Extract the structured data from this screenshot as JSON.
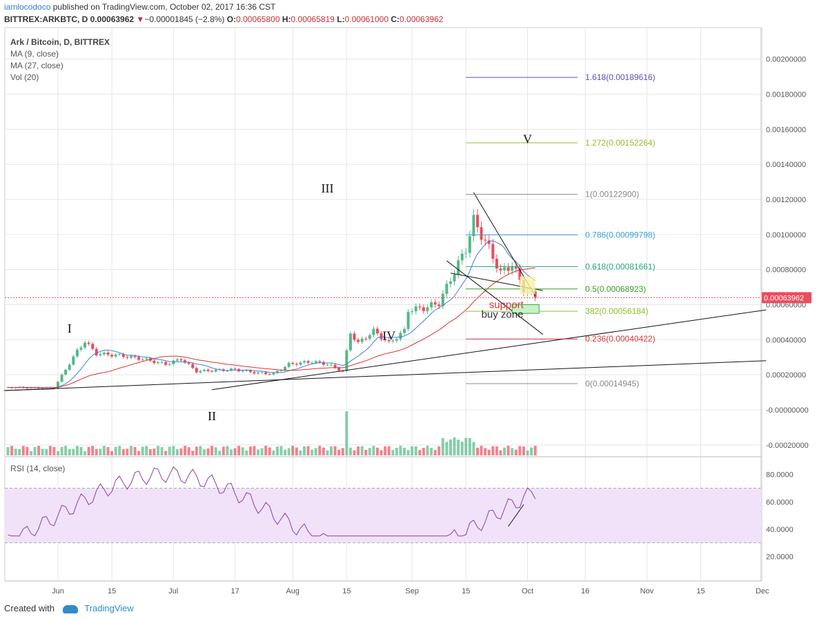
{
  "header": {
    "user": "iamlocodoco",
    "published": "published on TradingView.com, October 02, 2017 16:36 CST",
    "symbol": "BITTREX:ARKBTC, D",
    "last": "0.00063962",
    "change": "−0.00001845 (−2.8%)",
    "o_label": "O:",
    "o_value": "0.00065800",
    "h_label": "H:",
    "h_value": "0.00065819",
    "l_label": "L:",
    "l_value": "0.00061000",
    "c_label": "C:",
    "c_value": "0.00063962"
  },
  "legend": {
    "title": "Ark / Bitcoin, D, BITTREX",
    "ma9": "MA (9, close)",
    "ma27": "MA (27, close)",
    "vol": "Vol (20)",
    "rsi": "RSI (14, close)"
  },
  "footer": {
    "created": "Created with",
    "brand": "TradingView"
  },
  "colors": {
    "up": "#53b987",
    "down": "#eb4d5c",
    "ma9": "#3f7fd4",
    "ma27": "#e03030",
    "rsi": "#8b3ea0",
    "rsi_band": "#f1e2fa",
    "grid": "#e6e6e6"
  },
  "chart_data": {
    "type": "candlestick",
    "title": "Ark / Bitcoin, D, BITTREX",
    "y_ticks": [
      "0.00200000",
      "0.00180000",
      "0.00160000",
      "0.00140000",
      "0.00120000",
      "0.00100000",
      "0.00080000",
      "0.00060000",
      "0.00040000",
      "0.00020000",
      "-0.00000000",
      "-0.00020000"
    ],
    "y_range": [
      -0.00026,
      0.00218
    ],
    "rsi_ticks": [
      "80.0000",
      "60.0000",
      "40.0000",
      "20.0000"
    ],
    "rsi_range": [
      2,
      92
    ],
    "rsi_band": [
      30,
      70
    ],
    "x_ticks": [
      "Jun",
      "15",
      "Jul",
      "17",
      "Aug",
      "15",
      "Sep",
      "15",
      "Oct",
      "16",
      "Nov",
      "15",
      "Dec"
    ],
    "x_tick_days": [
      0,
      14,
      30,
      46,
      61,
      75,
      92,
      106,
      122,
      137,
      153,
      167,
      183
    ],
    "current_price": "0.00063962",
    "current_value": 0.00063962,
    "fib_levels": [
      {
        "label": "1.618(0.00189616)",
        "value": 0.00189616,
        "color": "#5a4ec2"
      },
      {
        "label": "1.272(0.00152264)",
        "value": 0.00152264,
        "color": "#8fbd2e"
      },
      {
        "label": "1(0.00122900)",
        "value": 0.001229,
        "color": "#888888"
      },
      {
        "label": "0.786(0.00099798)",
        "value": 0.00099798,
        "color": "#3aa0d6"
      },
      {
        "label": "0.618(0.00081661)",
        "value": 0.00081661,
        "color": "#27a67c"
      },
      {
        "label": "0.5(0.00068923)",
        "value": 0.00068923,
        "color": "#3d9a2a"
      },
      {
        "label": "382(0.00056184)",
        "value": 0.00056184,
        "color": "#8fbd2e"
      },
      {
        "label": "0.236(0.00040422)",
        "value": 0.00040422,
        "color": "#d43a3a"
      },
      {
        "label": "0(0.00014945)",
        "value": 0.00014945,
        "color": "#888888"
      }
    ],
    "wave_labels": [
      {
        "text": "I",
        "day": 3,
        "value": 0.00044
      },
      {
        "text": "II",
        "day": 40,
        "value": -6e-05
      },
      {
        "text": "III",
        "day": 70,
        "value": 0.00124
      },
      {
        "text": "IV",
        "day": 86,
        "value": 0.0004
      },
      {
        "text": "V",
        "day": 122,
        "value": 0.00152
      }
    ],
    "annotations": [
      {
        "text": "support",
        "day": 112,
        "value": 0.00058,
        "color": "#d43a3a"
      },
      {
        "text": "buy zone",
        "day": 110,
        "value": 0.000525,
        "color": "#333333"
      }
    ]
  }
}
